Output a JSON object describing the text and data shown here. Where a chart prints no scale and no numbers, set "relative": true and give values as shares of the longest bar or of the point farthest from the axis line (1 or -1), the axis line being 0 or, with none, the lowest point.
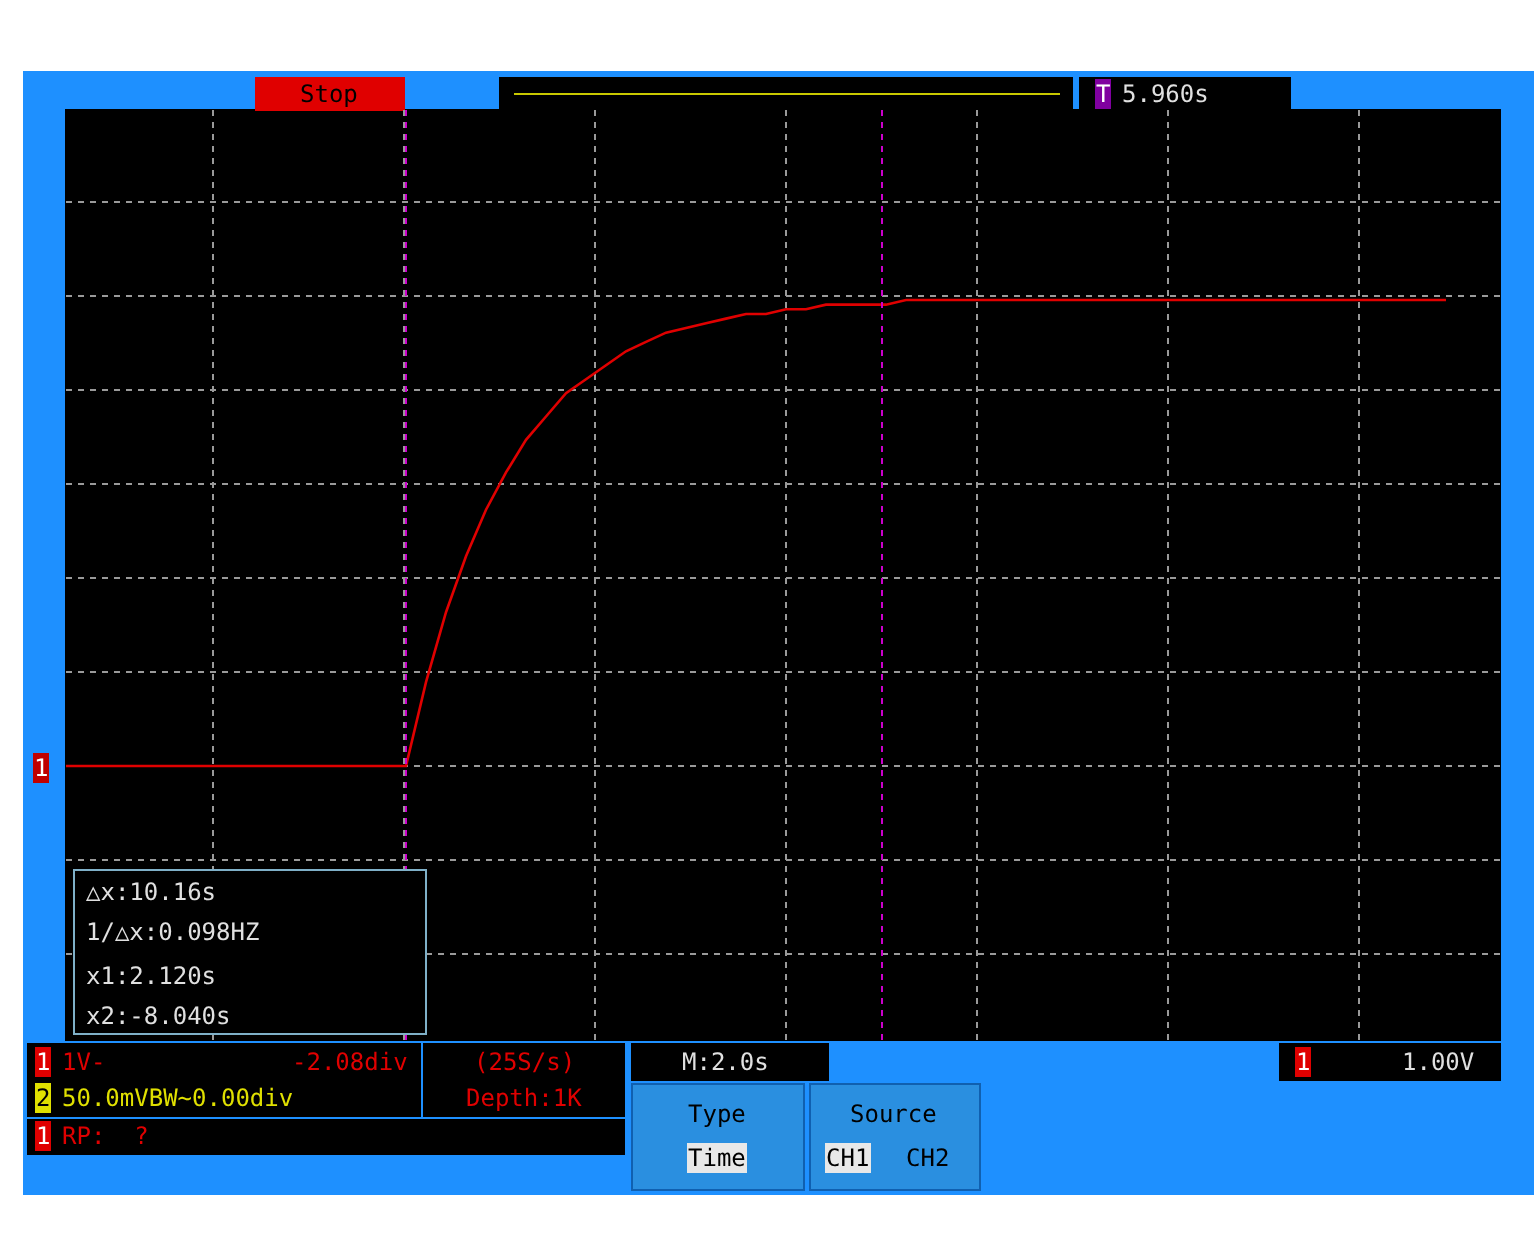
{
  "chart_data": {
    "type": "line",
    "relative": true,
    "grid": true,
    "legend": false,
    "marker": "none",
    "line_style": "solid",
    "categories": [
      null,
      null,
      null,
      null,
      null,
      null,
      null,
      null,
      null,
      null,
      null,
      null,
      null,
      null,
      null,
      null,
      null,
      null,
      null,
      null,
      null,
      null,
      null,
      null,
      null,
      null,
      null,
      null,
      null,
      null,
      null,
      null,
      null,
      null,
      null,
      null,
      null,
      null,
      null,
      null,
      null,
      null,
      null,
      null,
      null,
      null,
      null,
      null,
      null,
      null,
      null,
      null,
      null,
      null,
      null,
      null,
      null,
      null,
      null,
      null,
      null,
      null,
      null,
      null,
      null,
      null,
      null,
      null,
      null,
      null
    ],
    "series": [
      {
        "color": "#e00000",
        "values": [
          0,
          0,
          0,
          0,
          0,
          0,
          0,
          0,
          0,
          0,
          0,
          0,
          0,
          0,
          0,
          0,
          0,
          0,
          0.18,
          0.33,
          0.45,
          0.55,
          0.63,
          0.7,
          0.75,
          0.8,
          0.83,
          0.86,
          0.89,
          0.91,
          0.93,
          0.94,
          0.95,
          0.96,
          0.97,
          0.97,
          0.98,
          0.98,
          0.99,
          0.99,
          0.99,
          0.99,
          1,
          1,
          1,
          1,
          1,
          1,
          1,
          1,
          1,
          1,
          1,
          1,
          1,
          1,
          1,
          1,
          1,
          1,
          1,
          1,
          1,
          1,
          1,
          1,
          1,
          1,
          1,
          1
        ]
      }
    ],
    "annotations": [
      "Stop",
      "T",
      "5.960s",
      "△x:10.16s",
      "1/△x:0.098HZ",
      "x1:2.120s",
      "x2:-8.040s",
      "1",
      "1",
      "1V-",
      "-2.08div",
      "2",
      "50.0mVBW~0.00div",
      "(25S/s)",
      "Depth:1K",
      "1",
      "RP:  ?",
      "M:2.0s",
      "1",
      "1.00V",
      "Type",
      "Time",
      "Source",
      "CH1",
      "CH2"
    ]
  }
}
